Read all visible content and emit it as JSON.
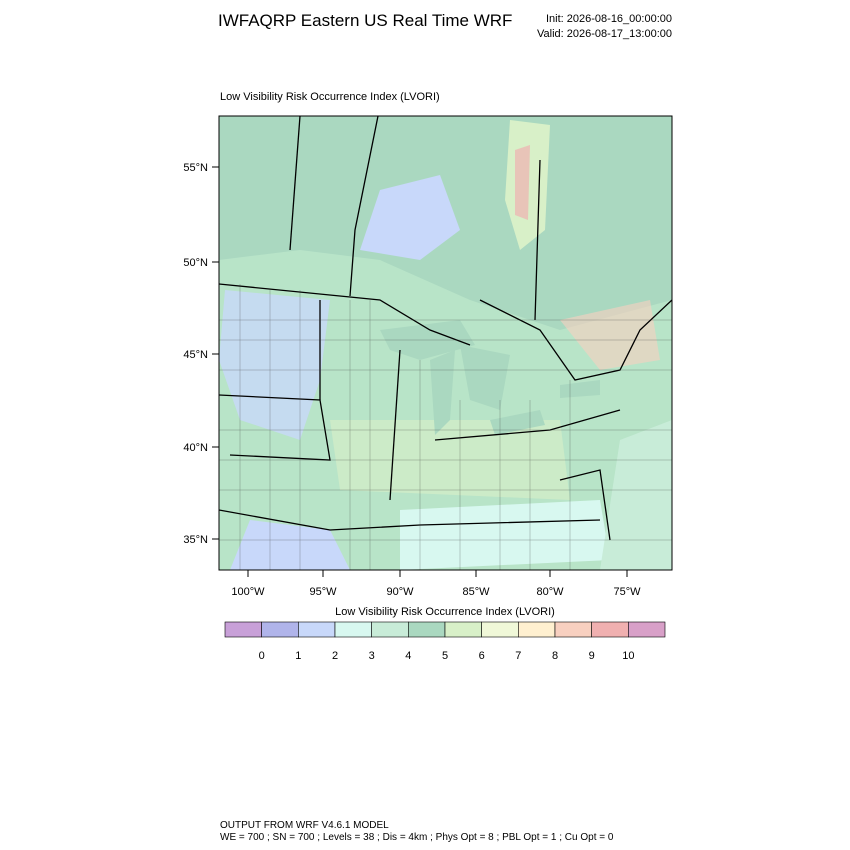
{
  "header": {
    "title": "IWFAQRP Eastern US Real Time WRF",
    "init": "Init: 2026-08-16_00:00:00",
    "valid": "Valid: 2026-08-17_13:00:00"
  },
  "plot": {
    "subtitle": "Low Visibility Risk Occurrence Index   (LVORI)",
    "lat_labels": [
      "55°N",
      "50°N",
      "45°N",
      "40°N",
      "35°N"
    ],
    "lon_labels": [
      "100°W",
      "95°W",
      "90°W",
      "85°W",
      "80°W",
      "75°W"
    ]
  },
  "colorbar": {
    "title": "Low Visibility Risk Occurrence Index  (LVORI)",
    "ticks": [
      0,
      1,
      2,
      3,
      4,
      5,
      6,
      7,
      8,
      9,
      10
    ],
    "colors": [
      "#c8a0d8",
      "#b0b4ea",
      "#c8d8fa",
      "#d8f8f0",
      "#c8ecd8",
      "#aad8c0",
      "#d8f0c8",
      "#f0f8d8",
      "#fff0d0",
      "#f8d0c0",
      "#f0b0b0",
      "#d8a0c8"
    ]
  },
  "footer": {
    "line1": "OUTPUT FROM WRF V4.6.1 MODEL",
    "line2": "WE = 700 ; SN = 700 ; Levels = 38 ; Dis = 4km ; Phys Opt = 8 ; PBL Opt = 1 ; Cu Opt = 0"
  }
}
